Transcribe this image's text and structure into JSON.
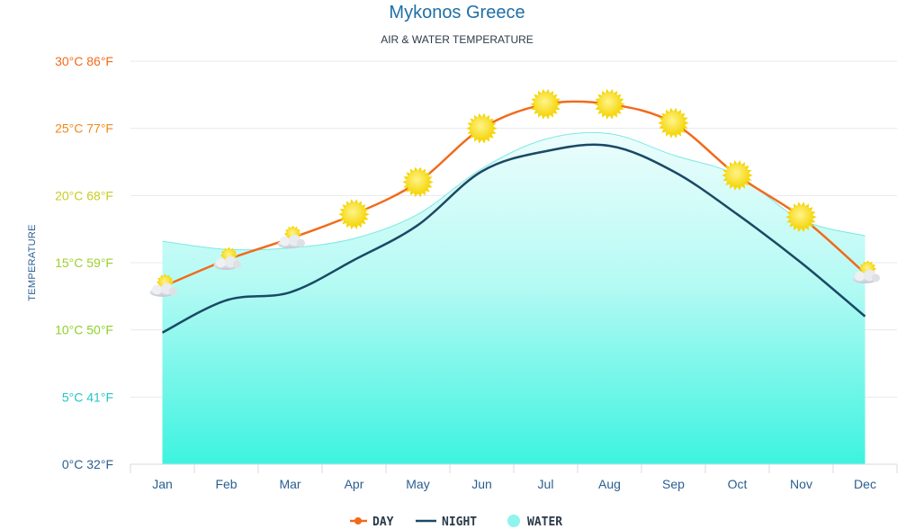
{
  "chart_data": {
    "type": "line",
    "title": "Mykonos Greece",
    "subtitle": "AIR & WATER TEMPERATURE",
    "ylabel": "TEMPERATURE",
    "categories": [
      "Jan",
      "Feb",
      "Mar",
      "Apr",
      "May",
      "Jun",
      "Jul",
      "Aug",
      "Sep",
      "Oct",
      "Nov",
      "Dec"
    ],
    "ylim": [
      0,
      30
    ],
    "yticks": [
      {
        "value": 0,
        "label": "0°C 32°F",
        "color": "#2a5f8f"
      },
      {
        "value": 5,
        "label": "5°C 41°F",
        "color": "#22c7c0"
      },
      {
        "value": 10,
        "label": "10°C 50°F",
        "color": "#8ed02a"
      },
      {
        "value": 15,
        "label": "15°C 59°F",
        "color": "#9ccf2c"
      },
      {
        "value": 20,
        "label": "20°C 68°F",
        "color": "#c9cc24"
      },
      {
        "value": 25,
        "label": "25°C 77°F",
        "color": "#f08a1a"
      },
      {
        "value": 30,
        "label": "30°C 86°F",
        "color": "#f26a1b"
      }
    ],
    "series": [
      {
        "name": "DAY",
        "color": "#f26a1b",
        "values": [
          13.2,
          15.2,
          16.8,
          18.6,
          21.0,
          25.0,
          26.8,
          26.8,
          25.4,
          21.5,
          18.4,
          14.2
        ],
        "icons": [
          "partly-cloudy-icon",
          "partly-cloudy-icon",
          "partly-cloudy-icon",
          "sun-icon",
          "sun-icon",
          "sun-icon",
          "sun-icon",
          "sun-icon",
          "sun-icon",
          "sun-icon",
          "sun-icon",
          "partly-cloudy-icon"
        ]
      },
      {
        "name": "NIGHT",
        "color": "#1b4965",
        "values": [
          9.8,
          12.2,
          12.8,
          15.2,
          17.8,
          21.8,
          23.3,
          23.7,
          21.8,
          18.6,
          15.0,
          11.0
        ]
      },
      {
        "name": "WATER",
        "color": "#8ff3ee",
        "values": [
          16.6,
          16.0,
          16.1,
          16.8,
          18.6,
          22.0,
          24.2,
          24.6,
          23.0,
          21.5,
          18.2,
          17.0
        ]
      }
    ],
    "legend": {
      "position": "bottom-center",
      "items": [
        "DAY",
        "NIGHT",
        "WATER"
      ]
    },
    "grid": true
  }
}
